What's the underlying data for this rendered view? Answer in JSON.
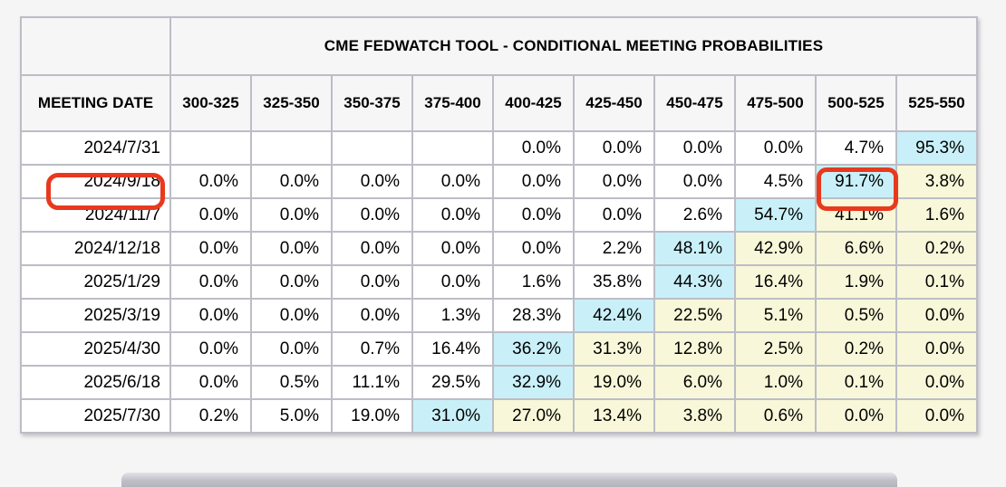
{
  "table": {
    "title": "CME FEDWATCH TOOL - CONDITIONAL MEETING PROBABILITIES",
    "date_column_header": "MEETING DATE",
    "rate_columns": [
      "300-325",
      "325-350",
      "350-375",
      "375-400",
      "400-425",
      "425-450",
      "450-475",
      "475-500",
      "500-525",
      "525-550"
    ],
    "rows": [
      {
        "date": "2024/7/31",
        "values": [
          "",
          "",
          "",
          "",
          "0.0%",
          "0.0%",
          "0.0%",
          "0.0%",
          "4.7%",
          "95.3%"
        ],
        "styles": [
          "none",
          "none",
          "none",
          "none",
          "none",
          "none",
          "none",
          "none",
          "none",
          "blue"
        ]
      },
      {
        "date": "2024/9/18",
        "values": [
          "0.0%",
          "0.0%",
          "0.0%",
          "0.0%",
          "0.0%",
          "0.0%",
          "0.0%",
          "4.5%",
          "91.7%",
          "3.8%"
        ],
        "styles": [
          "none",
          "none",
          "none",
          "none",
          "none",
          "none",
          "none",
          "none",
          "blue",
          "yellow"
        ]
      },
      {
        "date": "2024/11/7",
        "values": [
          "0.0%",
          "0.0%",
          "0.0%",
          "0.0%",
          "0.0%",
          "0.0%",
          "2.6%",
          "54.7%",
          "41.1%",
          "1.6%"
        ],
        "styles": [
          "none",
          "none",
          "none",
          "none",
          "none",
          "none",
          "none",
          "blue",
          "yellow",
          "yellow"
        ]
      },
      {
        "date": "2024/12/18",
        "values": [
          "0.0%",
          "0.0%",
          "0.0%",
          "0.0%",
          "0.0%",
          "2.2%",
          "48.1%",
          "42.9%",
          "6.6%",
          "0.2%"
        ],
        "styles": [
          "none",
          "none",
          "none",
          "none",
          "none",
          "none",
          "blue",
          "yellow",
          "yellow",
          "yellow"
        ]
      },
      {
        "date": "2025/1/29",
        "values": [
          "0.0%",
          "0.0%",
          "0.0%",
          "0.0%",
          "1.6%",
          "35.8%",
          "44.3%",
          "16.4%",
          "1.9%",
          "0.1%"
        ],
        "styles": [
          "none",
          "none",
          "none",
          "none",
          "none",
          "none",
          "blue",
          "yellow",
          "yellow",
          "yellow"
        ]
      },
      {
        "date": "2025/3/19",
        "values": [
          "0.0%",
          "0.0%",
          "0.0%",
          "1.3%",
          "28.3%",
          "42.4%",
          "22.5%",
          "5.1%",
          "0.5%",
          "0.0%"
        ],
        "styles": [
          "none",
          "none",
          "none",
          "none",
          "none",
          "blue",
          "yellow",
          "yellow",
          "yellow",
          "yellow"
        ]
      },
      {
        "date": "2025/4/30",
        "values": [
          "0.0%",
          "0.0%",
          "0.7%",
          "16.4%",
          "36.2%",
          "31.3%",
          "12.8%",
          "2.5%",
          "0.2%",
          "0.0%"
        ],
        "styles": [
          "none",
          "none",
          "none",
          "none",
          "blue",
          "yellow",
          "yellow",
          "yellow",
          "yellow",
          "yellow"
        ]
      },
      {
        "date": "2025/6/18",
        "values": [
          "0.0%",
          "0.5%",
          "11.1%",
          "29.5%",
          "32.9%",
          "19.0%",
          "6.0%",
          "1.0%",
          "0.1%",
          "0.0%"
        ],
        "styles": [
          "none",
          "none",
          "none",
          "none",
          "blue",
          "yellow",
          "yellow",
          "yellow",
          "yellow",
          "yellow"
        ]
      },
      {
        "date": "2025/7/30",
        "values": [
          "0.2%",
          "5.0%",
          "19.0%",
          "31.0%",
          "27.0%",
          "13.4%",
          "3.8%",
          "0.6%",
          "0.0%",
          "0.0%"
        ],
        "styles": [
          "none",
          "none",
          "none",
          "blue",
          "yellow",
          "yellow",
          "yellow",
          "yellow",
          "yellow",
          "yellow"
        ]
      }
    ]
  },
  "annotations": {
    "circled_meeting_date": "2024/9/18",
    "circled_probability": "91.7%",
    "annotation_color": "#e8391f"
  },
  "colors": {
    "highlight_blue": "#c9f0f8",
    "highlight_yellow": "#f8f7d9",
    "annotation_red": "#e8391f",
    "grid_border": "#bcbdc6",
    "header_background": "#f6f6f7"
  }
}
